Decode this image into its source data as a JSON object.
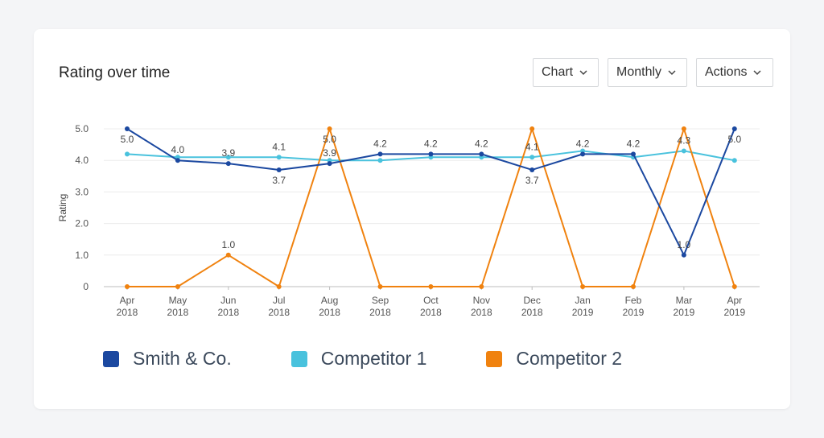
{
  "card": {
    "title": "Rating over time",
    "controls": [
      {
        "label": "Chart",
        "icon": "chevron-down-icon"
      },
      {
        "label": "Monthly",
        "icon": "chevron-down-icon"
      },
      {
        "label": "Actions",
        "icon": "chevron-down-icon"
      }
    ]
  },
  "chart_data": {
    "type": "line",
    "title": "",
    "xlabel": "",
    "ylabel": "Rating",
    "ylim": [
      0,
      5
    ],
    "yticks": [
      "0",
      "1.0",
      "2.0",
      "3.0",
      "4.0",
      "5.0"
    ],
    "grid": true,
    "legend_position": "bottom",
    "categories": [
      [
        "Apr",
        "2018"
      ],
      [
        "May",
        "2018"
      ],
      [
        "Jun",
        "2018"
      ],
      [
        "Jul",
        "2018"
      ],
      [
        "Aug",
        "2018"
      ],
      [
        "Sep",
        "2018"
      ],
      [
        "Oct",
        "2018"
      ],
      [
        "Nov",
        "2018"
      ],
      [
        "Dec",
        "2018"
      ],
      [
        "Jan",
        "2019"
      ],
      [
        "Feb",
        "2019"
      ],
      [
        "Mar",
        "2019"
      ],
      [
        "Apr",
        "2019"
      ]
    ],
    "series": [
      {
        "name": "Smith & Co.",
        "color": "#1b48a0",
        "values": [
          5.0,
          4.0,
          3.9,
          3.7,
          3.9,
          4.2,
          4.2,
          4.2,
          3.7,
          4.2,
          4.2,
          1.0,
          5.0
        ],
        "labels": [
          "5.0",
          "4.0",
          "3.9",
          "3.7",
          "3.9",
          "4.2",
          "4.2",
          "4.2",
          "3.7",
          "4.2",
          "4.2",
          "1.0",
          "5.0"
        ]
      },
      {
        "name": "Competitor 1",
        "color": "#49c2dd",
        "values": [
          4.2,
          4.1,
          4.1,
          4.1,
          4.0,
          4.0,
          4.1,
          4.1,
          4.1,
          4.3,
          4.1,
          4.3,
          4.0
        ],
        "labels": [
          "",
          "",
          "",
          "4.1",
          "",
          "",
          "",
          "",
          "4.1",
          "",
          "",
          "4.3",
          ""
        ]
      },
      {
        "name": "Competitor 2",
        "color": "#f0820f",
        "values": [
          0,
          0,
          1.0,
          0,
          5.0,
          0,
          0,
          0,
          5.0,
          0,
          0,
          5.0,
          0
        ],
        "labels": [
          "",
          "",
          "1.0",
          "",
          "5.0",
          "",
          "",
          "",
          "",
          "",
          "",
          "",
          ""
        ]
      }
    ]
  }
}
